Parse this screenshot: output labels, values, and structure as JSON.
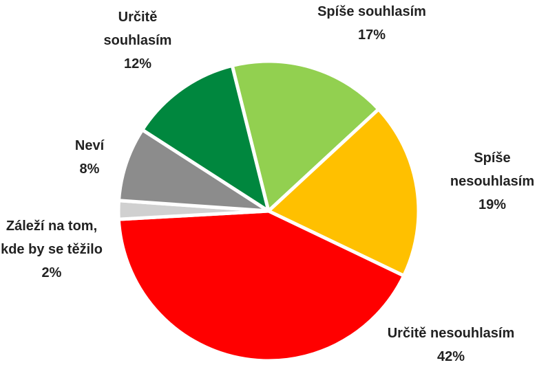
{
  "chart_data": {
    "type": "pie",
    "categories": [
      "Spíše souhlasím",
      "Spíše nesouhlasím",
      "Určitě nesouhlasím",
      "Záleží na tom, kde by se těžilo",
      "Neví",
      "Určitě souhlasím"
    ],
    "values": [
      17,
      19,
      42,
      2,
      8,
      12
    ],
    "value_labels": [
      "17%",
      "19%",
      "42%",
      "2%",
      "8%",
      "12%"
    ],
    "colors": [
      "#92d050",
      "#ffc000",
      "#ff0000",
      "#d0d0d0",
      "#8c8c8c",
      "#00873e"
    ]
  }
}
